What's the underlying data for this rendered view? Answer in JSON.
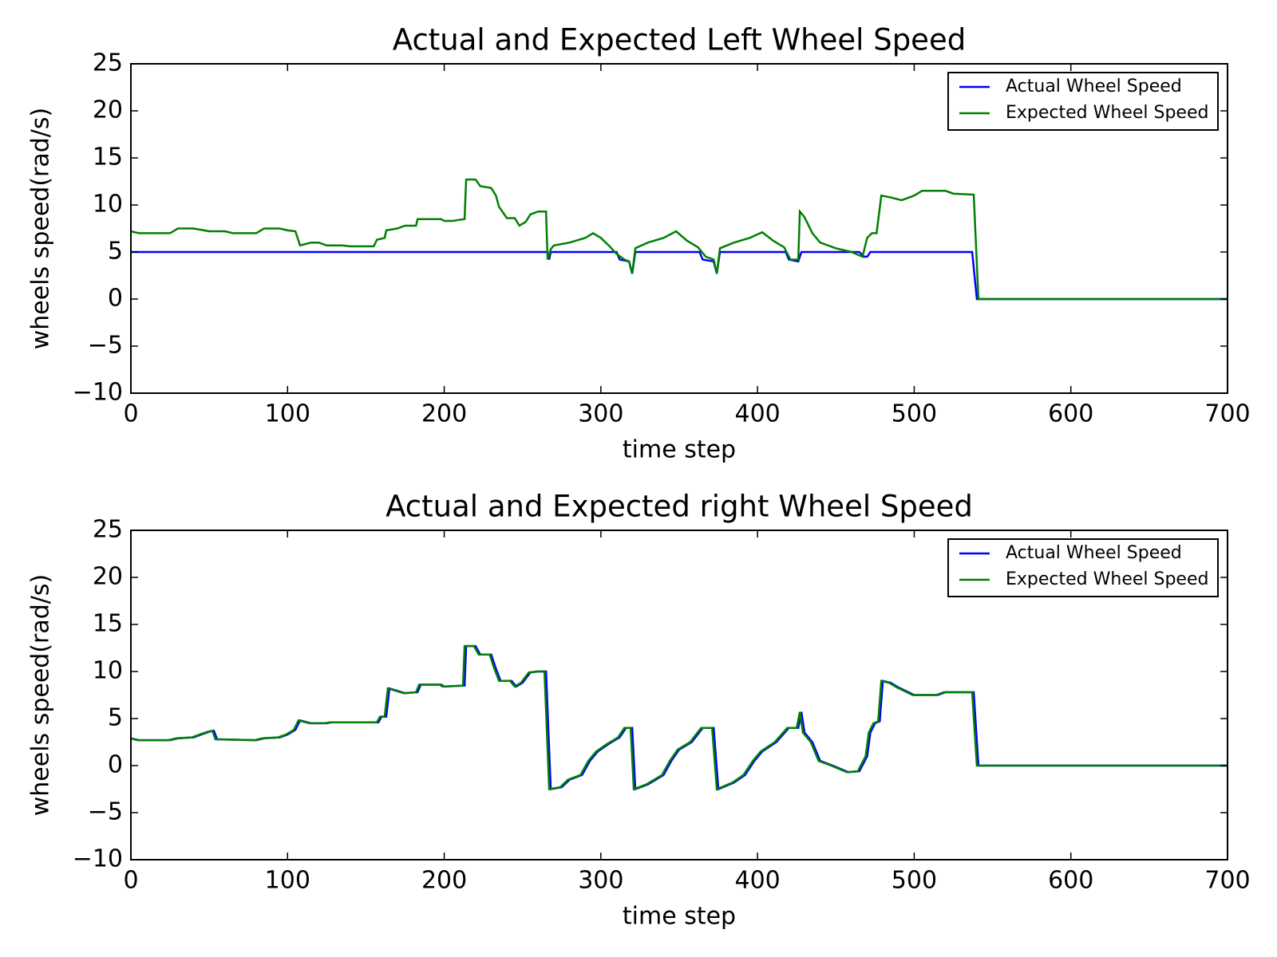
{
  "chart_data": [
    {
      "type": "line",
      "title": "Actual and Expected Left Wheel Speed",
      "x_label": "time step",
      "y_label": "wheels speed(rad/s)",
      "xlim": [
        0,
        700
      ],
      "xticks": [
        0,
        100,
        200,
        300,
        400,
        500,
        600,
        700
      ],
      "ylim": [
        -10,
        25
      ],
      "yticks": [
        {
          "value": -10,
          "label": "−10"
        },
        {
          "value": -5,
          "label": "−5"
        },
        0,
        5,
        10,
        15,
        20,
        25
      ],
      "legend": "upper right",
      "series": [
        {
          "name": "Actual Wheel Speed",
          "color": "#0000ff",
          "x": [
            0,
            266,
            267,
            268,
            310,
            312,
            318,
            320,
            322,
            363,
            365,
            372,
            374,
            376,
            418,
            420,
            426,
            428,
            465,
            468,
            470,
            472,
            537,
            540,
            700
          ],
          "values": [
            5,
            5,
            4.2,
            5,
            5,
            4.2,
            4,
            2.7,
            5,
            5,
            4.2,
            4,
            2.7,
            5,
            5,
            4.2,
            4,
            5,
            5,
            4.5,
            4.5,
            5,
            5,
            0,
            0
          ]
        },
        {
          "name": "Expected Wheel Speed",
          "color": "#008000",
          "x": [
            0,
            5,
            25,
            30,
            40,
            50,
            60,
            65,
            80,
            85,
            95,
            100,
            105,
            108,
            115,
            120,
            125,
            135,
            140,
            155,
            157,
            162,
            163,
            170,
            175,
            182,
            183,
            198,
            200,
            205,
            213,
            214,
            220,
            223,
            230,
            233,
            235,
            240,
            245,
            248,
            252,
            255,
            260,
            265,
            266,
            268,
            270,
            280,
            290,
            295,
            300,
            305,
            310,
            315,
            318,
            320,
            322,
            330,
            340,
            348,
            355,
            362,
            367,
            372,
            374,
            376,
            385,
            395,
            403,
            410,
            417,
            421,
            426,
            427,
            430,
            435,
            440,
            450,
            460,
            467,
            470,
            473,
            476,
            479,
            485,
            492,
            500,
            505,
            520,
            525,
            538,
            541,
            700
          ],
          "values": [
            7.2,
            7.0,
            7.0,
            7.5,
            7.5,
            7.2,
            7.2,
            7.0,
            7.0,
            7.5,
            7.5,
            7.3,
            7.2,
            5.7,
            6.0,
            6.0,
            5.7,
            5.7,
            5.6,
            5.6,
            6.3,
            6.5,
            7.3,
            7.5,
            7.8,
            7.8,
            8.5,
            8.5,
            8.3,
            8.3,
            8.5,
            12.7,
            12.7,
            12.0,
            11.8,
            11.0,
            9.8,
            8.6,
            8.6,
            7.8,
            8.2,
            9.0,
            9.3,
            9.3,
            4.2,
            5.3,
            5.7,
            6.0,
            6.5,
            7.0,
            6.5,
            5.7,
            4.8,
            4.2,
            4.0,
            2.7,
            5.4,
            6.0,
            6.5,
            7.2,
            6.2,
            5.5,
            4.5,
            4.2,
            2.7,
            5.4,
            6.0,
            6.5,
            7.1,
            6.2,
            5.5,
            4.2,
            4.2,
            9.3,
            8.7,
            7.0,
            6.0,
            5.4,
            5.0,
            4.5,
            6.5,
            7.0,
            7.0,
            11.0,
            10.8,
            10.5,
            11.0,
            11.5,
            11.5,
            11.2,
            11.1,
            0,
            0
          ]
        }
      ]
    },
    {
      "type": "line",
      "title": "Actual and Expected right Wheel Speed",
      "x_label": "time step",
      "y_label": "wheels speed(rad/s)",
      "xlim": [
        0,
        700
      ],
      "xticks": [
        0,
        100,
        200,
        300,
        400,
        500,
        600,
        700
      ],
      "ylim": [
        -10,
        25
      ],
      "yticks": [
        {
          "value": -10,
          "label": "−10"
        },
        {
          "value": -5,
          "label": "−5"
        },
        0,
        5,
        10,
        15,
        20,
        25
      ],
      "legend": "upper right",
      "series": [
        {
          "name": "Actual Wheel Speed",
          "color": "#0000ff",
          "x": [
            0,
            5,
            25,
            30,
            40,
            50,
            53,
            55,
            80,
            85,
            95,
            100,
            105,
            108,
            115,
            125,
            128,
            140,
            158,
            160,
            163,
            165,
            175,
            183,
            185,
            198,
            200,
            213,
            214,
            220,
            223,
            230,
            233,
            236,
            243,
            246,
            250,
            255,
            260,
            265,
            268,
            275,
            280,
            288,
            293,
            298,
            305,
            312,
            316,
            320,
            322,
            330,
            340,
            345,
            350,
            358,
            365,
            372,
            375,
            385,
            392,
            398,
            403,
            412,
            420,
            426,
            428,
            430,
            435,
            440,
            448,
            458,
            465,
            470,
            472,
            475,
            478,
            480,
            485,
            490,
            500,
            515,
            520,
            538,
            541,
            700
          ],
          "values": [
            2.9,
            2.7,
            2.7,
            2.9,
            3.0,
            3.6,
            3.7,
            2.8,
            2.7,
            2.9,
            3.0,
            3.3,
            3.8,
            4.8,
            4.5,
            4.5,
            4.6,
            4.6,
            4.6,
            5.2,
            5.2,
            8.2,
            7.7,
            7.8,
            8.6,
            8.6,
            8.4,
            8.5,
            12.7,
            12.7,
            11.8,
            11.8,
            10.3,
            9.0,
            9.0,
            8.4,
            8.8,
            9.9,
            10.0,
            10.0,
            -2.5,
            -2.3,
            -1.5,
            -1.0,
            0.5,
            1.5,
            2.3,
            3.0,
            4.0,
            4.0,
            -2.5,
            -2.0,
            -1.0,
            0.5,
            1.7,
            2.5,
            4.0,
            4.0,
            -2.5,
            -1.8,
            -1.0,
            0.5,
            1.5,
            2.5,
            4.0,
            4.0,
            5.7,
            3.5,
            2.5,
            0.5,
            0.0,
            -0.7,
            -0.6,
            1.0,
            3.5,
            4.5,
            4.7,
            9.0,
            8.8,
            8.3,
            7.5,
            7.5,
            7.8,
            7.8,
            0,
            0
          ]
        },
        {
          "name": "Expected Wheel Speed",
          "color": "#008000",
          "x": [
            0,
            4,
            24,
            29,
            39,
            49,
            52,
            54,
            79,
            84,
            94,
            99,
            104,
            107,
            114,
            124,
            127,
            139,
            157,
            159,
            162,
            164,
            174,
            182,
            184,
            197,
            199,
            212,
            213,
            219,
            222,
            229,
            232,
            235,
            242,
            245,
            249,
            254,
            259,
            264,
            267,
            274,
            279,
            287,
            292,
            297,
            304,
            311,
            315,
            319,
            321,
            329,
            339,
            344,
            349,
            357,
            364,
            371,
            374,
            384,
            391,
            397,
            402,
            411,
            419,
            425,
            427,
            429,
            434,
            439,
            447,
            457,
            464,
            469,
            471,
            474,
            477,
            479,
            484,
            489,
            499,
            514,
            519,
            537,
            540,
            700
          ],
          "values": [
            2.9,
            2.7,
            2.7,
            2.9,
            3.0,
            3.6,
            3.7,
            2.8,
            2.7,
            2.9,
            3.0,
            3.3,
            3.8,
            4.8,
            4.5,
            4.5,
            4.6,
            4.6,
            4.6,
            5.2,
            5.2,
            8.2,
            7.7,
            7.8,
            8.6,
            8.6,
            8.4,
            8.5,
            12.7,
            12.7,
            11.8,
            11.8,
            10.3,
            9.0,
            9.0,
            8.4,
            8.8,
            9.9,
            10.0,
            10.0,
            -2.5,
            -2.3,
            -1.5,
            -1.0,
            0.5,
            1.5,
            2.3,
            3.0,
            4.0,
            4.0,
            -2.5,
            -2.0,
            -1.0,
            0.5,
            1.7,
            2.5,
            4.0,
            4.0,
            -2.5,
            -1.8,
            -1.0,
            0.5,
            1.5,
            2.5,
            4.0,
            4.0,
            5.7,
            3.5,
            2.5,
            0.5,
            0.0,
            -0.7,
            -0.6,
            1.0,
            3.5,
            4.5,
            4.7,
            9.0,
            8.8,
            8.3,
            7.5,
            7.5,
            7.8,
            7.8,
            0,
            0
          ]
        }
      ]
    }
  ]
}
